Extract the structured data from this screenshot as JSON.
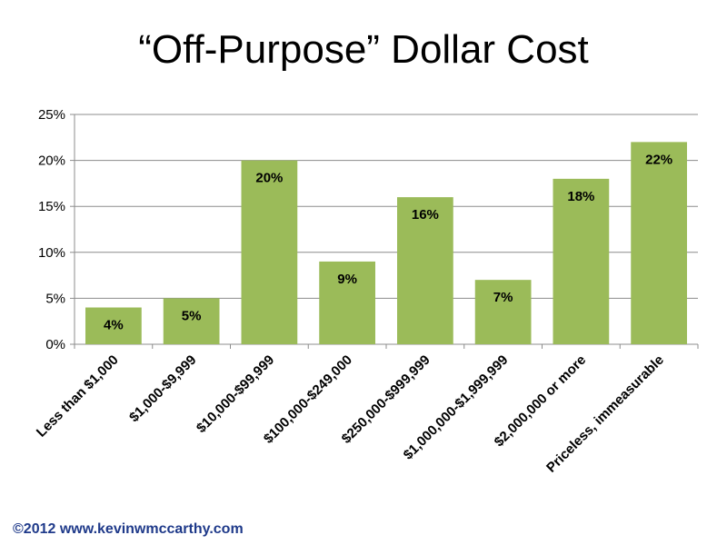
{
  "chart_data": {
    "type": "bar",
    "title": "“Off-Purpose” Dollar Cost",
    "categories": [
      "Less than $1,000",
      "$1,000-$9,999",
      "$10,000-$99,999",
      "$100,000-$249,000",
      "$250,000-$999,999",
      "$1,000,000-$1,999,999",
      "$2,000,000 or more",
      "Priceless, immeasurable"
    ],
    "values": [
      4,
      5,
      20,
      9,
      16,
      7,
      18,
      22
    ],
    "data_labels": [
      "4%",
      "5%",
      "20%",
      "9%",
      "16%",
      "7%",
      "18%",
      "22%"
    ],
    "ylim": [
      0,
      25
    ],
    "yticks": [
      0,
      5,
      10,
      15,
      20,
      25
    ],
    "ytick_labels": [
      "0%",
      "5%",
      "10%",
      "15%",
      "20%",
      "25%"
    ],
    "grid": true,
    "bar_color": "#9bbb59"
  },
  "footer": {
    "copyright": "©2012 www.kevinwmccarthy.com"
  }
}
